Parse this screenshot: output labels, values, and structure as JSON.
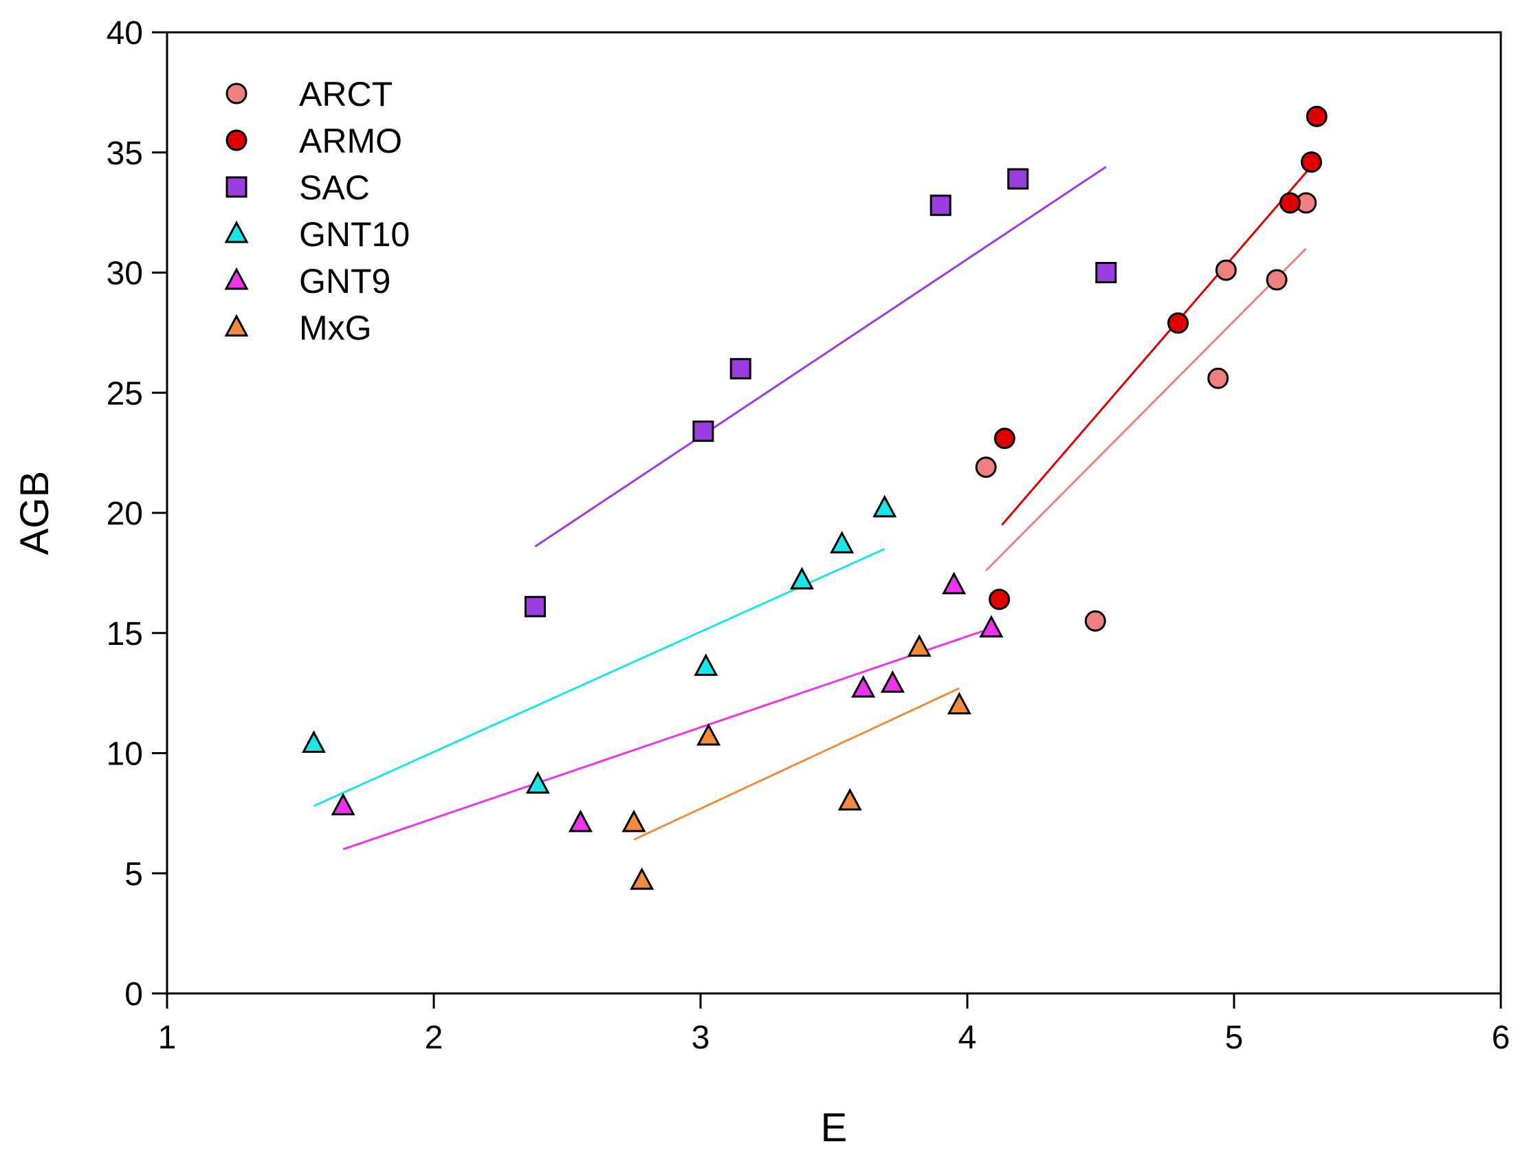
{
  "chart_data": {
    "type": "scatter",
    "title": "",
    "xlabel": "E",
    "ylabel": "AGB",
    "xlim": [
      1,
      6
    ],
    "ylim": [
      0,
      40
    ],
    "xticks": [
      1,
      2,
      3,
      4,
      5,
      6
    ],
    "yticks": [
      0,
      5,
      10,
      15,
      20,
      25,
      30,
      35,
      40
    ],
    "grid": false,
    "legend_position": "top-left",
    "series": [
      {
        "name": "ARCT",
        "marker": "circle",
        "color": "#f08080",
        "points": [
          [
            4.07,
            21.9
          ],
          [
            4.48,
            15.5
          ],
          [
            4.94,
            25.6
          ],
          [
            4.97,
            30.1
          ],
          [
            5.16,
            29.7
          ],
          [
            5.27,
            32.9
          ]
        ],
        "fit": [
          [
            4.07,
            17.6
          ],
          [
            5.27,
            31.0
          ]
        ]
      },
      {
        "name": "ARMO",
        "marker": "circle",
        "color": "#e00000",
        "points": [
          [
            4.12,
            16.4
          ],
          [
            4.14,
            23.1
          ],
          [
            4.79,
            27.9
          ],
          [
            5.21,
            32.9
          ],
          [
            5.29,
            34.6
          ],
          [
            5.31,
            36.5
          ]
        ],
        "fit": [
          [
            4.13,
            19.5
          ],
          [
            5.28,
            34.3
          ]
        ]
      },
      {
        "name": "SAC",
        "marker": "square",
        "color": "#9b3ee0",
        "points": [
          [
            2.38,
            16.1
          ],
          [
            3.01,
            23.4
          ],
          [
            3.15,
            26.0
          ],
          [
            3.9,
            32.8
          ],
          [
            4.19,
            33.9
          ],
          [
            4.52,
            30.0
          ]
        ],
        "fit": [
          [
            2.38,
            18.6
          ],
          [
            4.52,
            34.4
          ]
        ]
      },
      {
        "name": "GNT10",
        "marker": "triangle",
        "color": "#19e6e6",
        "points": [
          [
            1.55,
            10.4
          ],
          [
            2.39,
            8.7
          ],
          [
            3.02,
            13.6
          ],
          [
            3.38,
            17.2
          ],
          [
            3.53,
            18.7
          ],
          [
            3.69,
            20.2
          ]
        ],
        "fit": [
          [
            1.55,
            7.8
          ],
          [
            3.69,
            18.5
          ]
        ]
      },
      {
        "name": "GNT9",
        "marker": "triangle",
        "color": "#ee33ee",
        "points": [
          [
            1.66,
            7.8
          ],
          [
            2.55,
            7.1
          ],
          [
            3.61,
            12.7
          ],
          [
            3.72,
            12.9
          ],
          [
            3.95,
            17.0
          ],
          [
            4.09,
            15.2
          ]
        ],
        "fit": [
          [
            1.66,
            6.0
          ],
          [
            4.09,
            15.2
          ]
        ]
      },
      {
        "name": "MxG",
        "marker": "triangle",
        "color": "#f58a3c",
        "points": [
          [
            2.75,
            7.1
          ],
          [
            2.78,
            4.7
          ],
          [
            3.03,
            10.7
          ],
          [
            3.56,
            8.0
          ],
          [
            3.82,
            14.4
          ],
          [
            3.97,
            12.0
          ]
        ],
        "fit": [
          [
            2.75,
            6.4
          ],
          [
            3.97,
            12.7
          ]
        ]
      }
    ]
  }
}
